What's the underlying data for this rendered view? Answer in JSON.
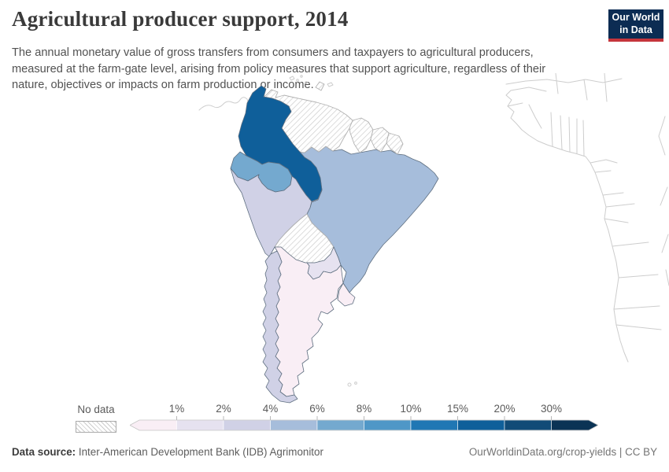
{
  "header": {
    "title": "Agricultural producer support, 2014",
    "subtitle": "The annual monetary value of gross transfers from consumers and taxpayers to agricultural producers, measured at the farm-gate level, arising from policy measures that support agriculture, regardless of their nature, objectives or impacts on farm production or income.",
    "logo": {
      "line1": "Our World",
      "line2": "in Data",
      "bg": "#0c2c53",
      "accent": "#c5353c"
    }
  },
  "legend": {
    "no_data_label": "No data",
    "tick_labels": [
      "1%",
      "2%",
      "4%",
      "6%",
      "8%",
      "10%",
      "15%",
      "20%",
      "30%"
    ],
    "colors": [
      "#f9eef5",
      "#e6e2f0",
      "#d0d1e6",
      "#a6bddb",
      "#74a9cf",
      "#4f97c7",
      "#2077b4",
      "#0f5f9a",
      "#114b77",
      "#0b3355"
    ],
    "hatch_line_color": "#c9c9c9"
  },
  "footer": {
    "source_label": "Data source:",
    "source_value": "Inter-American Development Bank (IDB) Agrimonitor",
    "attribution": "OurWorldinData.org/crop-yields | CC BY"
  },
  "chart_data": {
    "type": "heatmap",
    "subtype": "choropleth-map",
    "title": "Agricultural producer support, 2014",
    "unit": "% (producer support estimate)",
    "region_shown": "South America (gray outlines of Central America and West Africa also visible)",
    "legend_buckets": [
      "<1%",
      "1%–2%",
      "2%–4%",
      "4%–6%",
      "6%–8%",
      "8%–10%",
      "10%–15%",
      "15%–20%",
      "20%–30%",
      ">30%"
    ],
    "countries": [
      {
        "id": "colombia",
        "name": "Colombia",
        "value_bucket": "15%–20%",
        "color": "#0f5f9a"
      },
      {
        "id": "ecuador",
        "name": "Ecuador",
        "value_bucket": "6%–8%",
        "color": "#74a9cf"
      },
      {
        "id": "brazil",
        "name": "Brazil",
        "value_bucket": "4%–6%",
        "color": "#a6bddb"
      },
      {
        "id": "peru",
        "name": "Peru",
        "value_bucket": "2%–4%",
        "color": "#d0d1e6"
      },
      {
        "id": "chile",
        "name": "Chile",
        "value_bucket": "2%–4%",
        "color": "#d0d1e6"
      },
      {
        "id": "paraguay",
        "name": "Paraguay",
        "value_bucket": "1%–2%",
        "color": "#e6e2f0"
      },
      {
        "id": "argentina",
        "name": "Argentina",
        "value_bucket": "<1%",
        "color": "#f9eef5"
      },
      {
        "id": "uruguay",
        "name": "Uruguay",
        "value_bucket": "<1%",
        "color": "#f9eef5"
      },
      {
        "id": "venezuela",
        "name": "Venezuela",
        "value_bucket": "No data",
        "color": "hatch"
      },
      {
        "id": "guyana",
        "name": "Guyana",
        "value_bucket": "No data",
        "color": "hatch"
      },
      {
        "id": "suriname",
        "name": "Suriname",
        "value_bucket": "No data",
        "color": "hatch"
      },
      {
        "id": "french-guiana",
        "name": "French Guiana",
        "value_bucket": "No data",
        "color": "hatch"
      },
      {
        "id": "bolivia",
        "name": "Bolivia",
        "value_bucket": "No data",
        "color": "hatch"
      },
      {
        "id": "trinidad",
        "name": "Trinidad and Tobago",
        "value_bucket": "No data",
        "color": "hatch"
      }
    ]
  }
}
